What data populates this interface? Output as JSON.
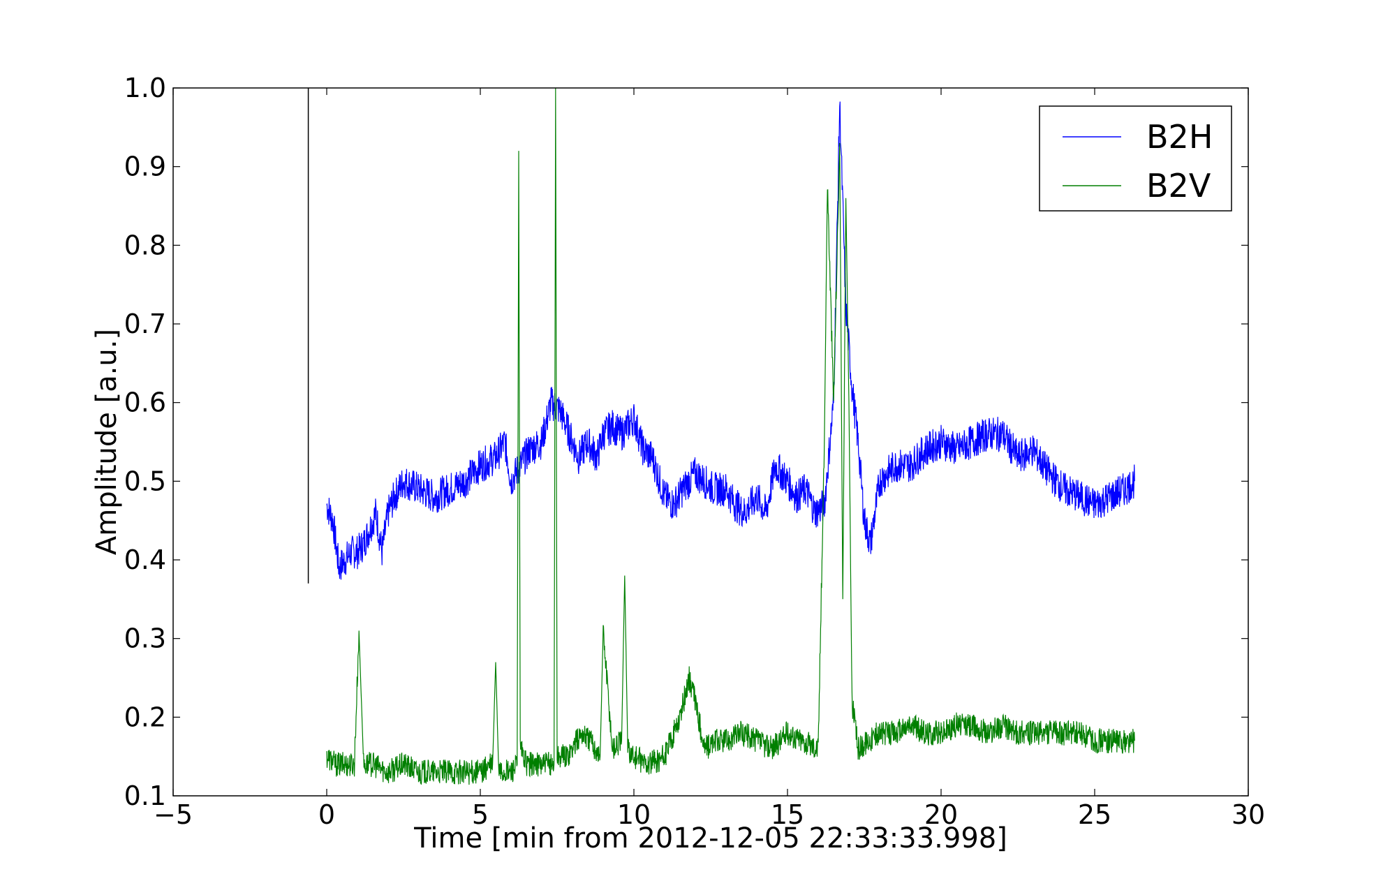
{
  "chart_data": {
    "type": "line",
    "title": "",
    "xlabel": "Time [min from 2012-12-05 22:33:33.998]",
    "ylabel": "Amplitude [a.u.]",
    "xlim": [
      -5,
      30
    ],
    "ylim": [
      0.1,
      1.0
    ],
    "xticks": [
      "−5",
      "0",
      "5",
      "10",
      "15",
      "20",
      "25",
      "30"
    ],
    "yticks": [
      "0.1",
      "0.2",
      "0.3",
      "0.4",
      "0.5",
      "0.6",
      "0.7",
      "0.8",
      "0.9",
      "1.0"
    ],
    "grid": false,
    "legend_position": "top-right",
    "marker_line": {
      "x": -0.6,
      "y": [
        0.37,
        1.0
      ],
      "color": "#000000"
    },
    "series": [
      {
        "name": "B2H",
        "color": "#0000ff",
        "x": [
          0,
          0.2,
          0.4,
          0.6,
          0.8,
          1.0,
          1.2,
          1.4,
          1.6,
          1.8,
          2.0,
          2.2,
          2.5,
          3.0,
          3.5,
          4.0,
          4.5,
          5.0,
          5.5,
          5.8,
          6.0,
          6.3,
          6.6,
          7.0,
          7.3,
          7.6,
          7.9,
          8.2,
          8.5,
          8.8,
          9.0,
          9.3,
          9.6,
          10.0,
          10.3,
          10.6,
          11.0,
          11.3,
          11.6,
          12.0,
          12.3,
          12.6,
          13.0,
          13.3,
          13.6,
          14.0,
          14.3,
          14.6,
          15.0,
          15.3,
          15.6,
          15.9,
          16.2,
          16.5,
          16.7,
          16.9,
          17.1,
          17.3,
          17.5,
          17.7,
          18.0,
          18.5,
          19.0,
          19.5,
          20.0,
          20.5,
          21.0,
          21.5,
          22.0,
          22.5,
          23.0,
          23.5,
          24.0,
          24.5,
          25.0,
          25.5,
          26.0,
          26.3
        ],
        "values": [
          0.47,
          0.45,
          0.39,
          0.4,
          0.41,
          0.41,
          0.42,
          0.44,
          0.46,
          0.41,
          0.46,
          0.48,
          0.5,
          0.49,
          0.48,
          0.49,
          0.5,
          0.52,
          0.53,
          0.55,
          0.5,
          0.52,
          0.54,
          0.55,
          0.6,
          0.59,
          0.56,
          0.53,
          0.55,
          0.53,
          0.56,
          0.57,
          0.56,
          0.58,
          0.54,
          0.53,
          0.48,
          0.47,
          0.49,
          0.51,
          0.5,
          0.49,
          0.49,
          0.47,
          0.46,
          0.48,
          0.46,
          0.52,
          0.5,
          0.48,
          0.49,
          0.46,
          0.47,
          0.6,
          0.98,
          0.72,
          0.62,
          0.55,
          0.45,
          0.42,
          0.5,
          0.52,
          0.52,
          0.54,
          0.55,
          0.54,
          0.55,
          0.56,
          0.56,
          0.53,
          0.54,
          0.51,
          0.49,
          0.48,
          0.47,
          0.48,
          0.49,
          0.5
        ]
      },
      {
        "name": "B2V",
        "color": "#007f00",
        "x": [
          0,
          0.3,
          0.6,
          0.9,
          1.05,
          1.2,
          1.5,
          2.0,
          2.5,
          3.0,
          3.5,
          4.0,
          4.5,
          5.0,
          5.4,
          5.5,
          5.6,
          5.8,
          6.0,
          6.2,
          6.25,
          6.3,
          6.5,
          7.0,
          7.4,
          7.45,
          7.5,
          7.8,
          8.0,
          8.3,
          8.6,
          8.9,
          9.0,
          9.3,
          9.6,
          9.7,
          9.8,
          10.0,
          10.5,
          11.0,
          11.5,
          11.8,
          12.0,
          12.3,
          12.7,
          13.0,
          13.5,
          14.0,
          14.5,
          15.0,
          15.5,
          16.0,
          16.2,
          16.3,
          16.5,
          16.7,
          16.8,
          16.9,
          17.0,
          17.1,
          17.3,
          17.6,
          18.0,
          18.5,
          19.0,
          19.5,
          20.0,
          20.5,
          21.0,
          21.5,
          22.0,
          22.5,
          23.0,
          23.5,
          24.0,
          24.5,
          25.0,
          25.5,
          26.0,
          26.3
        ],
        "values": [
          0.15,
          0.14,
          0.14,
          0.14,
          0.31,
          0.14,
          0.14,
          0.13,
          0.14,
          0.13,
          0.13,
          0.13,
          0.13,
          0.13,
          0.14,
          0.27,
          0.13,
          0.13,
          0.13,
          0.14,
          0.92,
          0.16,
          0.14,
          0.14,
          0.14,
          1.0,
          0.15,
          0.15,
          0.16,
          0.18,
          0.17,
          0.15,
          0.31,
          0.16,
          0.17,
          0.38,
          0.16,
          0.15,
          0.14,
          0.15,
          0.2,
          0.25,
          0.22,
          0.16,
          0.17,
          0.17,
          0.18,
          0.17,
          0.16,
          0.18,
          0.17,
          0.16,
          0.55,
          0.88,
          0.6,
          0.93,
          0.35,
          0.86,
          0.6,
          0.22,
          0.16,
          0.17,
          0.18,
          0.18,
          0.19,
          0.18,
          0.18,
          0.19,
          0.19,
          0.18,
          0.19,
          0.18,
          0.18,
          0.18,
          0.18,
          0.18,
          0.17,
          0.17,
          0.17,
          0.17
        ]
      }
    ]
  }
}
